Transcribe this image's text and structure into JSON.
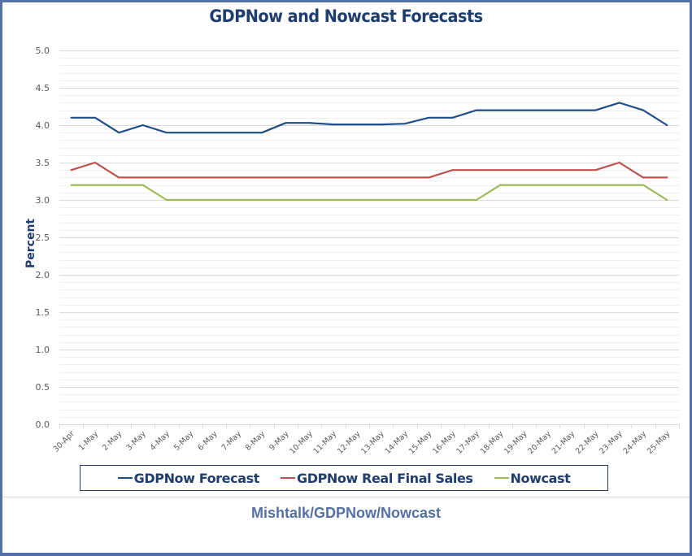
{
  "chart_data": {
    "type": "line",
    "title": "GDPNow and Nowcast Forecasts",
    "xlabel": "",
    "ylabel": "Percent",
    "ylim": [
      0.0,
      5.0
    ],
    "y_major_step": 0.5,
    "y_minor_step": 0.1,
    "grid": true,
    "legend_position": "bottom",
    "yticks": [
      "0.0",
      "0.5",
      "1.0",
      "1.5",
      "2.0",
      "2.5",
      "3.0",
      "3.5",
      "4.0",
      "4.5",
      "5.0"
    ],
    "categories": [
      "30-Apr",
      "1-May",
      "2-May",
      "3-May",
      "4-May",
      "5-May",
      "6-May",
      "7-May",
      "8-May",
      "9-May",
      "10-May",
      "11-May",
      "12-May",
      "13-May",
      "14-May",
      "15-May",
      "16-May",
      "17-May",
      "18-May",
      "19-May",
      "20-May",
      "21-May",
      "22-May",
      "23-May",
      "24-May",
      "25-May"
    ],
    "series": [
      {
        "name": "GDPNow Forecast",
        "color": "#1f4e86",
        "values": [
          4.1,
          4.1,
          3.9,
          4.0,
          3.9,
          3.9,
          3.9,
          3.9,
          3.9,
          4.03,
          4.03,
          4.01,
          4.01,
          4.01,
          4.02,
          4.1,
          4.1,
          4.2,
          4.2,
          4.2,
          4.2,
          4.2,
          4.2,
          4.3,
          4.2,
          4.0
        ]
      },
      {
        "name": "GDPNow Real Final Sales",
        "color": "#c0504d",
        "values": [
          3.4,
          3.5,
          3.3,
          3.3,
          3.3,
          3.3,
          3.3,
          3.3,
          3.3,
          3.3,
          3.3,
          3.3,
          3.3,
          3.3,
          3.3,
          3.3,
          3.4,
          3.4,
          3.4,
          3.4,
          3.4,
          3.4,
          3.4,
          3.5,
          3.3,
          3.3
        ]
      },
      {
        "name": "Nowcast",
        "color": "#9bbb59",
        "values": [
          3.2,
          3.2,
          3.2,
          3.2,
          3.0,
          3.0,
          3.0,
          3.0,
          3.0,
          3.0,
          3.0,
          3.0,
          3.0,
          3.0,
          3.0,
          3.0,
          3.0,
          3.0,
          3.2,
          3.2,
          3.2,
          3.2,
          3.2,
          3.2,
          3.2,
          3.0
        ]
      }
    ],
    "source_note": "Mishtalk/GDPNow/Nowcast"
  },
  "colors": {
    "title": "#1f3e6e",
    "border": "#5470a4",
    "gridline_major": "#d9d9d9",
    "gridline_minor": "#efefef"
  }
}
